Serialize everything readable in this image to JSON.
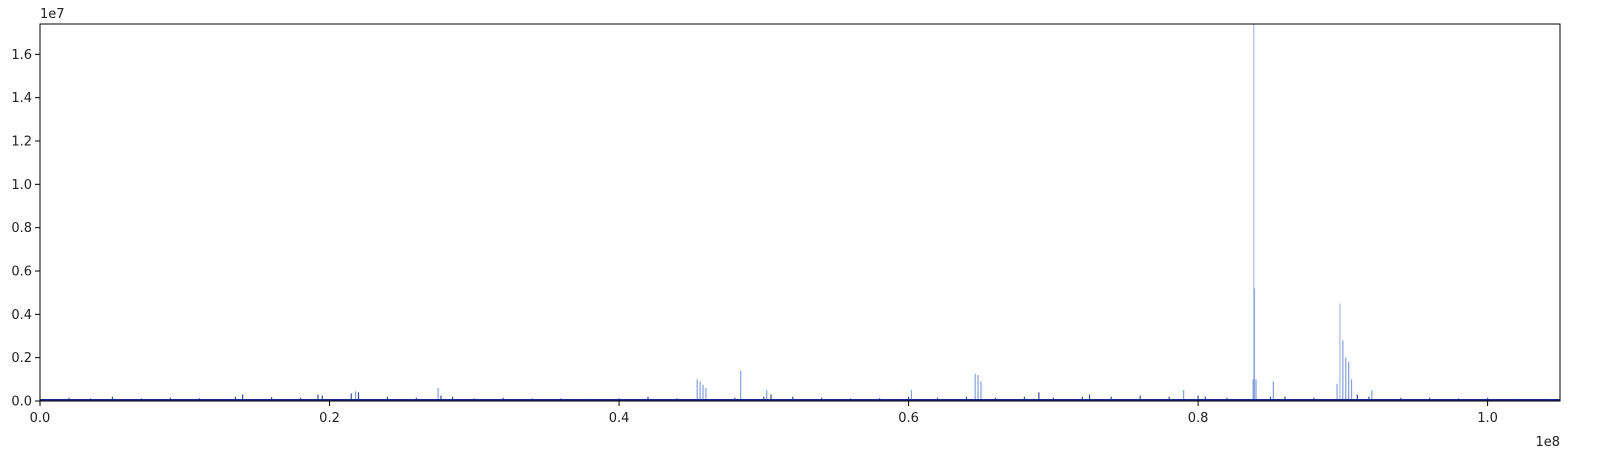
{
  "chart_data": {
    "type": "bar",
    "title": "",
    "xlabel": "",
    "ylabel": "",
    "x_offset_label": "1e8",
    "y_offset_label": "1e7",
    "xlim": [
      0,
      1.05
    ],
    "ylim": [
      0,
      1.74
    ],
    "x_ticks": [
      0.0,
      0.2,
      0.4,
      0.6,
      0.8,
      1.0
    ],
    "x_tick_labels": [
      "0.0",
      "0.2",
      "0.4",
      "0.6",
      "0.8",
      "1.0"
    ],
    "y_ticks": [
      0.0,
      0.2,
      0.4,
      0.6,
      0.8,
      1.0,
      1.2,
      1.4,
      1.6
    ],
    "y_tick_labels": [
      "0.0",
      "0.2",
      "0.4",
      "0.6",
      "0.8",
      "1.0",
      "1.2",
      "1.4",
      "1.6"
    ],
    "grid": false,
    "legend": "none",
    "colors": {
      "bars_light": "#6f8fd8",
      "bars_dark": "#1a2a8c",
      "axis": "#000000"
    },
    "series": [
      {
        "x": [
          0.0,
          0.02,
          0.035,
          0.05,
          0.07,
          0.09,
          0.11,
          0.135,
          0.14,
          0.16,
          0.18,
          0.192,
          0.195,
          0.215,
          0.218,
          0.22,
          0.24,
          0.26,
          0.275,
          0.277,
          0.285,
          0.3,
          0.32,
          0.34,
          0.36,
          0.38,
          0.4,
          0.42,
          0.44,
          0.454,
          0.456,
          0.458,
          0.46,
          0.48,
          0.484,
          0.5,
          0.502,
          0.505,
          0.52,
          0.54,
          0.56,
          0.58,
          0.6,
          0.602,
          0.62,
          0.64,
          0.646,
          0.648,
          0.65,
          0.66,
          0.68,
          0.69,
          0.7,
          0.72,
          0.725,
          0.74,
          0.76,
          0.78,
          0.79,
          0.8,
          0.805,
          0.82,
          0.838,
          0.8385,
          0.839,
          0.84,
          0.85,
          0.852,
          0.86,
          0.88,
          0.896,
          0.898,
          0.9,
          0.902,
          0.904,
          0.906,
          0.91,
          0.918,
          0.92,
          0.94,
          0.96,
          0.98,
          1.0,
          1.02,
          1.04
        ],
        "values": [
          0.01,
          0.015,
          0.012,
          0.02,
          0.012,
          0.015,
          0.013,
          0.02,
          0.03,
          0.018,
          0.015,
          0.03,
          0.025,
          0.035,
          0.045,
          0.04,
          0.02,
          0.015,
          0.06,
          0.025,
          0.02,
          0.012,
          0.015,
          0.012,
          0.012,
          0.01,
          0.012,
          0.02,
          0.012,
          0.1,
          0.09,
          0.075,
          0.06,
          0.015,
          0.14,
          0.02,
          0.05,
          0.03,
          0.02,
          0.015,
          0.012,
          0.013,
          0.02,
          0.05,
          0.015,
          0.02,
          0.125,
          0.12,
          0.09,
          0.015,
          0.02,
          0.04,
          0.015,
          0.02,
          0.03,
          0.02,
          0.025,
          0.02,
          0.05,
          0.025,
          0.02,
          0.015,
          0.1,
          1.74,
          0.52,
          0.1,
          0.02,
          0.09,
          0.02,
          0.015,
          0.08,
          0.45,
          0.28,
          0.2,
          0.18,
          0.1,
          0.03,
          0.02,
          0.05,
          0.015,
          0.015,
          0.012,
          0.015,
          0.01,
          0.01
        ]
      }
    ]
  }
}
